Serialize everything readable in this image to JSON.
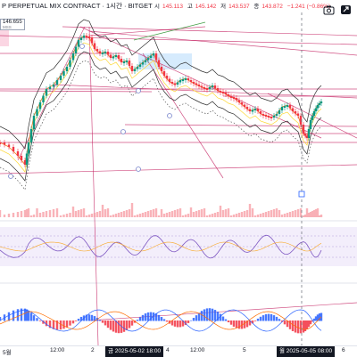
{
  "header": {
    "symbol_title": "P PERPETUAL MIX CONTRACT · 1시간 · BITGET",
    "ohlc_label_open": "시",
    "ohlc_open": "145.113",
    "ohlc_label_high": "고",
    "ohlc_high": "145.142",
    "ohlc_label_low": "저",
    "ohlc_low": "143.537",
    "ohlc_label_close": "종",
    "ohlc_close": "143.872",
    "ohlc_change": "−1.241 (−0.86%)"
  },
  "price_badge": {
    "value": "146.655",
    "sub": "MSS"
  },
  "date_axis": {
    "labels": [
      "5월",
      "12:00",
      "2",
      "12:00",
      "4",
      "12:00",
      "5",
      "12:00",
      "6"
    ],
    "cursor_date_left": "금 2025-05-02  18:00",
    "cursor_date_right": "월 2025-05-05  08:00"
  },
  "colors": {
    "up": "#089981",
    "down": "#f23645",
    "volume_up": "#f7a0a8",
    "volume_down": "#f7a0a8",
    "trendline": "#c2185b",
    "band": "#2c2c2c",
    "rsi": "#7e57c2",
    "rsi_band": "#ede7f6",
    "macd_up": "#2962ff",
    "macd_down": "#f23645",
    "cursor": "#787b86"
  },
  "icons": [
    "camera-icon",
    "fullscreen-icon"
  ]
}
